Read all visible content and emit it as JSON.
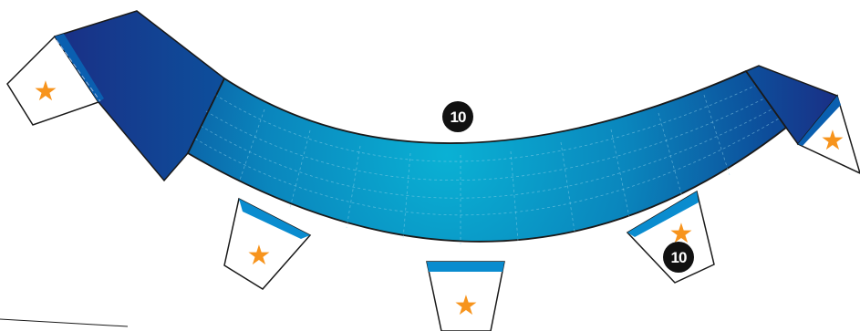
{
  "badges": [
    {
      "label": "10"
    },
    {
      "label": "10"
    }
  ],
  "star_glyph": "★",
  "colors": {
    "band_light": "#0aa3c8",
    "band_mid": "#0a7cb6",
    "band_dark": "#0d4f9c",
    "flap_dark": "#18358c",
    "tab_blue": "#0a8ccf",
    "star": "#f7941d",
    "outline": "#1a1a1a",
    "badge": "#111111"
  }
}
